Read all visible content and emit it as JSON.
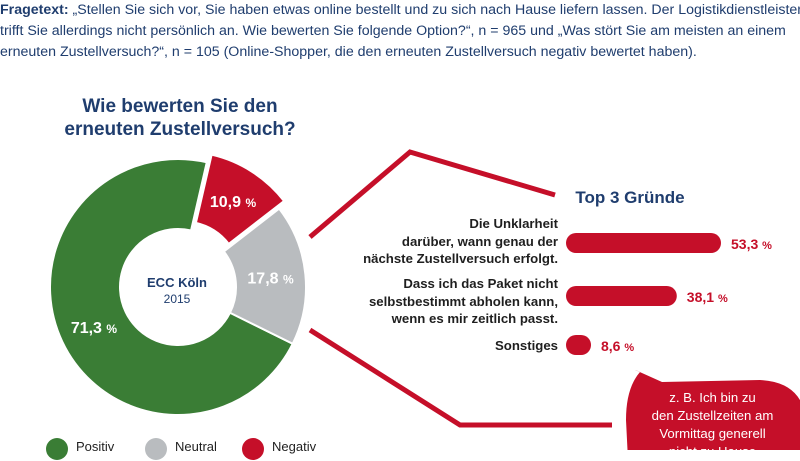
{
  "question": {
    "label": "Fragetext:",
    "lines": [
      " „Stellen Sie sich vor, Sie haben etwas online bestellt und zu sich nach Hause liefern lassen. Der Logistikdienstleister",
      "trifft Sie allerdings nicht persönlich an. Wie bewerten Sie folgende Option?“, n = 965 und „Was stört Sie am meisten an einem",
      "erneuten Zustellversuch?“, n = 105 (Online-Shopper, die den erneuten Zustellversuch negativ bewertet haben)."
    ]
  },
  "center": {
    "org": "ECC Köln",
    "year": "2015"
  },
  "colors": {
    "positive": "#3a7d35",
    "neutral": "#b9bcbf",
    "negative": "#c50f29",
    "text": "#1f3d6e"
  },
  "bubble_lines": [
    "z. B. Ich bin zu",
    "den Zustellzeiten am",
    "Vormittag generell",
    "nicht zu Hause"
  ],
  "chart_data": [
    {
      "type": "pie",
      "title": [
        "Wie bewerten Sie den",
        "erneuten Zustellversuch?"
      ],
      "slices": [
        {
          "label": "Positiv",
          "value": 71.3,
          "value_text": "71,3",
          "color": "#3a7d35"
        },
        {
          "label": "Neutral",
          "value": 17.8,
          "value_text": "17,8",
          "color": "#b9bcbf"
        },
        {
          "label": "Negativ",
          "value": 10.9,
          "value_text": "10,9",
          "color": "#c50f29"
        }
      ],
      "unit": "%",
      "legend_position": "bottom"
    },
    {
      "type": "bar",
      "orientation": "horizontal",
      "title": "Top 3 Gründe",
      "categories": [
        [
          "Die Unklarheit",
          "darüber, wann genau der",
          "nächste Zustellversuch erfolgt."
        ],
        [
          "Dass ich das Paket nicht",
          "selbstbestimmt abholen kann,",
          "wenn es mir zeitlich passt."
        ],
        [
          "Sonstiges"
        ]
      ],
      "values": [
        53.3,
        38.1,
        8.6
      ],
      "value_texts": [
        "53,3",
        "38,1",
        "8,6"
      ],
      "unit": "%",
      "color": "#c50f29"
    }
  ]
}
